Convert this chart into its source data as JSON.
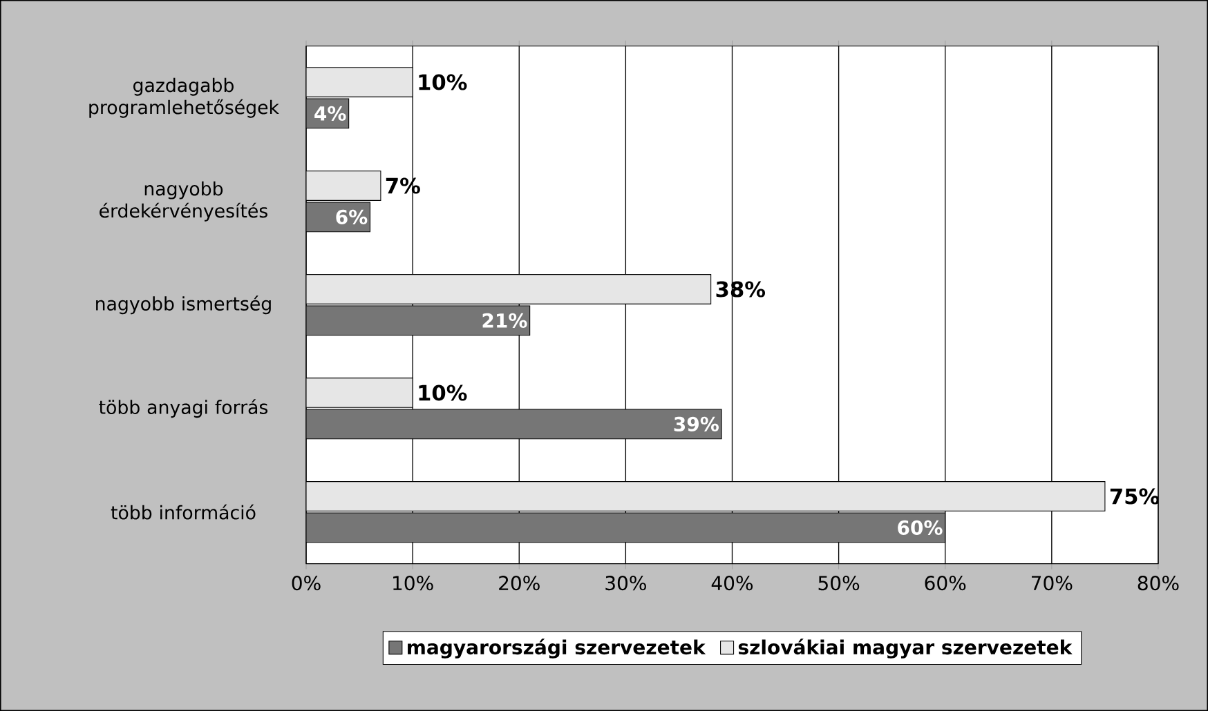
{
  "chart_data": {
    "type": "bar",
    "orientation": "horizontal",
    "categories": [
      "gazdagabb programlehetőségek",
      "nagyobb érdekérvényesítés",
      "nagyobb ismertség",
      "több anyagi forrás",
      "több információ"
    ],
    "series": [
      {
        "name": "magyarországi szervezetek",
        "color": "#767676",
        "values": [
          4,
          6,
          21,
          39,
          60
        ],
        "value_labels": [
          "4%",
          "6%",
          "21%",
          "39%",
          "60%"
        ]
      },
      {
        "name": "szlovákiai magyar szervezetek",
        "color": "#e6e6e6",
        "values": [
          10,
          7,
          38,
          10,
          75
        ],
        "value_labels": [
          "10%",
          "7%",
          "38%",
          "10%",
          "75%"
        ]
      }
    ],
    "xlim": [
      0,
      80
    ],
    "xticks": [
      {
        "value": 0,
        "label": "0%"
      },
      {
        "value": 10,
        "label": "10%"
      },
      {
        "value": 20,
        "label": "20%"
      },
      {
        "value": 30,
        "label": "30%"
      },
      {
        "value": 40,
        "label": "40%"
      },
      {
        "value": 50,
        "label": "50%"
      },
      {
        "value": 60,
        "label": "60%"
      },
      {
        "value": 70,
        "label": "70%"
      },
      {
        "value": 80,
        "label": "80%"
      }
    ],
    "grid": "x",
    "legend": "bottom"
  }
}
